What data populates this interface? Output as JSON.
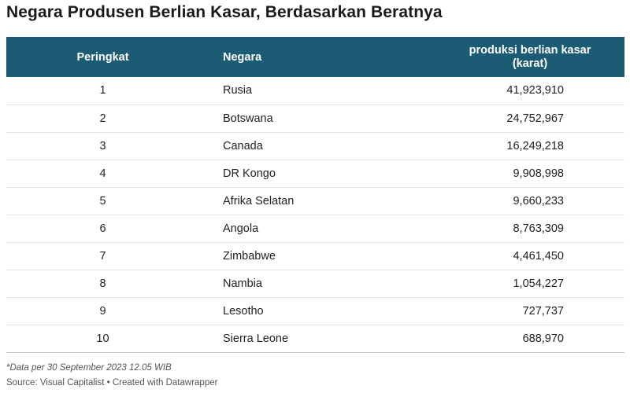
{
  "title": "Negara Produsen Berlian Kasar, Berdasarkan Beratnya",
  "columns": {
    "rank": "Peringkat",
    "country": "Negara",
    "production_line1": "produksi berlian kasar",
    "production_line2": "(karat)"
  },
  "rows": [
    {
      "rank": "1",
      "country": "Rusia",
      "production": "41,923,910"
    },
    {
      "rank": "2",
      "country": "Botswana",
      "production": "24,752,967"
    },
    {
      "rank": "3",
      "country": "Canada",
      "production": "16,249,218"
    },
    {
      "rank": "4",
      "country": "DR Kongo",
      "production": "9,908,998"
    },
    {
      "rank": "5",
      "country": "Afrika Selatan",
      "production": "9,660,233"
    },
    {
      "rank": "6",
      "country": "Angola",
      "production": "8,763,309"
    },
    {
      "rank": "7",
      "country": "Zimbabwe",
      "production": "4,461,450"
    },
    {
      "rank": "8",
      "country": "Nambia",
      "production": "1,054,227"
    },
    {
      "rank": "9",
      "country": "Lesotho",
      "production": "727,737"
    },
    {
      "rank": "10",
      "country": "Sierra Leone",
      "production": "688,970"
    }
  ],
  "footnote": "*Data per 30 September 2023 12.05 WIB",
  "source": "Source: Visual Capitalist • Created with Datawrapper",
  "colors": {
    "header_bg": "#1b5b73",
    "header_text": "#ffffff"
  },
  "chart_data": {
    "type": "table",
    "title": "Negara Produsen Berlian Kasar, Berdasarkan Beratnya",
    "columns": [
      "Peringkat",
      "Negara",
      "produksi berlian kasar (karat)"
    ],
    "categories": [
      "Rusia",
      "Botswana",
      "Canada",
      "DR Kongo",
      "Afrika Selatan",
      "Angola",
      "Zimbabwe",
      "Nambia",
      "Lesotho",
      "Sierra Leone"
    ],
    "ranks": [
      1,
      2,
      3,
      4,
      5,
      6,
      7,
      8,
      9,
      10
    ],
    "values": [
      41923910,
      24752967,
      16249218,
      9908998,
      9660233,
      8763309,
      4461450,
      1054227,
      727737,
      688970
    ]
  }
}
